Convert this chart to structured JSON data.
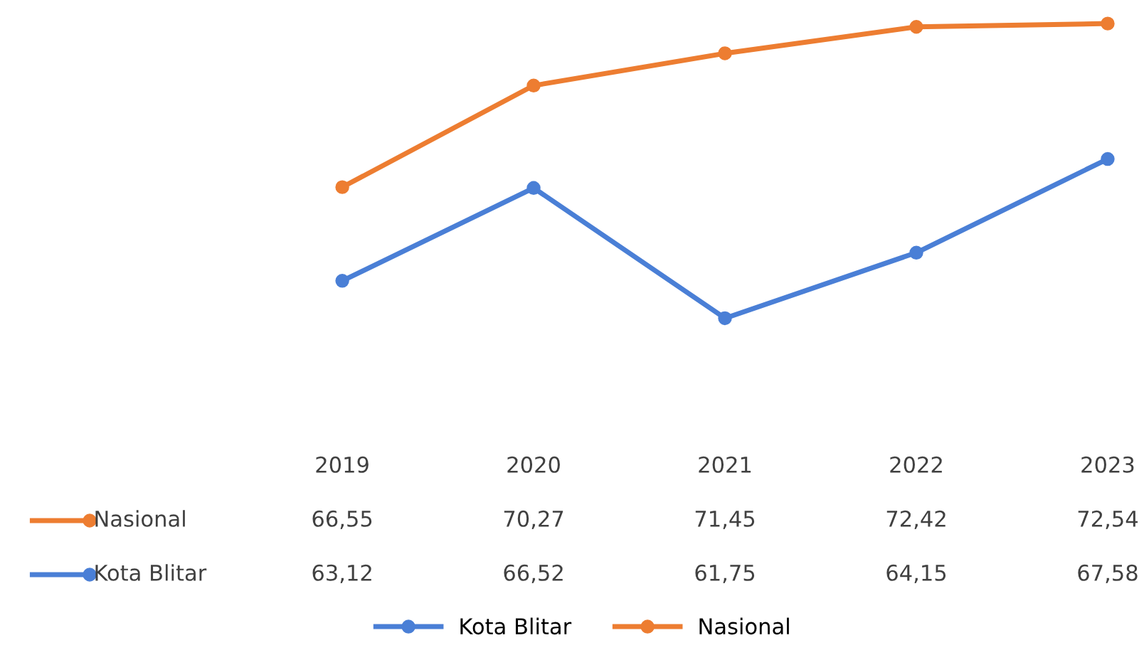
{
  "chart_data": {
    "type": "line",
    "categories": [
      "2019",
      "2020",
      "2021",
      "2022",
      "2023"
    ],
    "series": [
      {
        "name": "Nasional",
        "color": "#ed7d31",
        "values": [
          66.55,
          70.27,
          71.45,
          72.42,
          72.54
        ],
        "value_labels": [
          "66,55",
          "70,27",
          "71,45",
          "72,42",
          "72,54"
        ]
      },
      {
        "name": "Kota Blitar",
        "color": "#4a7fd6",
        "values": [
          63.12,
          66.52,
          61.75,
          64.15,
          67.58
        ],
        "value_labels": [
          "63,12",
          "66,52",
          "61,75",
          "64,15",
          "67,58"
        ]
      }
    ],
    "marker": "circle",
    "line_style": "solid",
    "legend": "bottom"
  }
}
